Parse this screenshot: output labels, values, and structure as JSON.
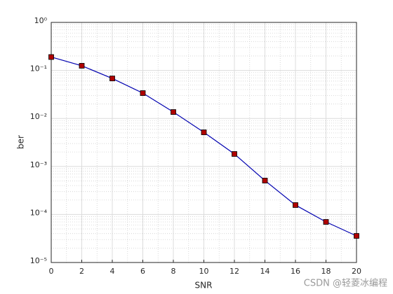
{
  "chart_data": {
    "type": "line",
    "xlabel": "SNR",
    "ylabel": "ber",
    "x": [
      0,
      2,
      4,
      6,
      8,
      10,
      12,
      14,
      16,
      18,
      20
    ],
    "series": [
      {
        "color": "#0000b0",
        "marker_color": "#b00000",
        "values": [
          0.19,
          0.125,
          0.068,
          0.0337,
          0.0136,
          0.00514,
          0.00182,
          0.000508,
          0.000157,
          7e-05,
          3.58e-05
        ]
      }
    ],
    "xlim": [
      0,
      20
    ],
    "xticks": [
      0,
      2,
      4,
      6,
      8,
      10,
      12,
      14,
      16,
      18,
      20
    ],
    "ylim": [
      1e-05,
      1
    ],
    "yticks": [
      {
        "value": 1e-05,
        "label": "10⁻⁵"
      },
      {
        "value": 0.0001,
        "label": "10⁻⁴"
      },
      {
        "value": 0.001,
        "label": "10⁻³"
      },
      {
        "value": 0.01,
        "label": "10⁻²"
      },
      {
        "value": 0.1,
        "label": "10⁻¹"
      },
      {
        "value": 1,
        "label": "10⁰"
      }
    ],
    "ylog": true,
    "grid": true,
    "minor_grid": true,
    "watermark": "CSDN @轻菱冰编程"
  }
}
